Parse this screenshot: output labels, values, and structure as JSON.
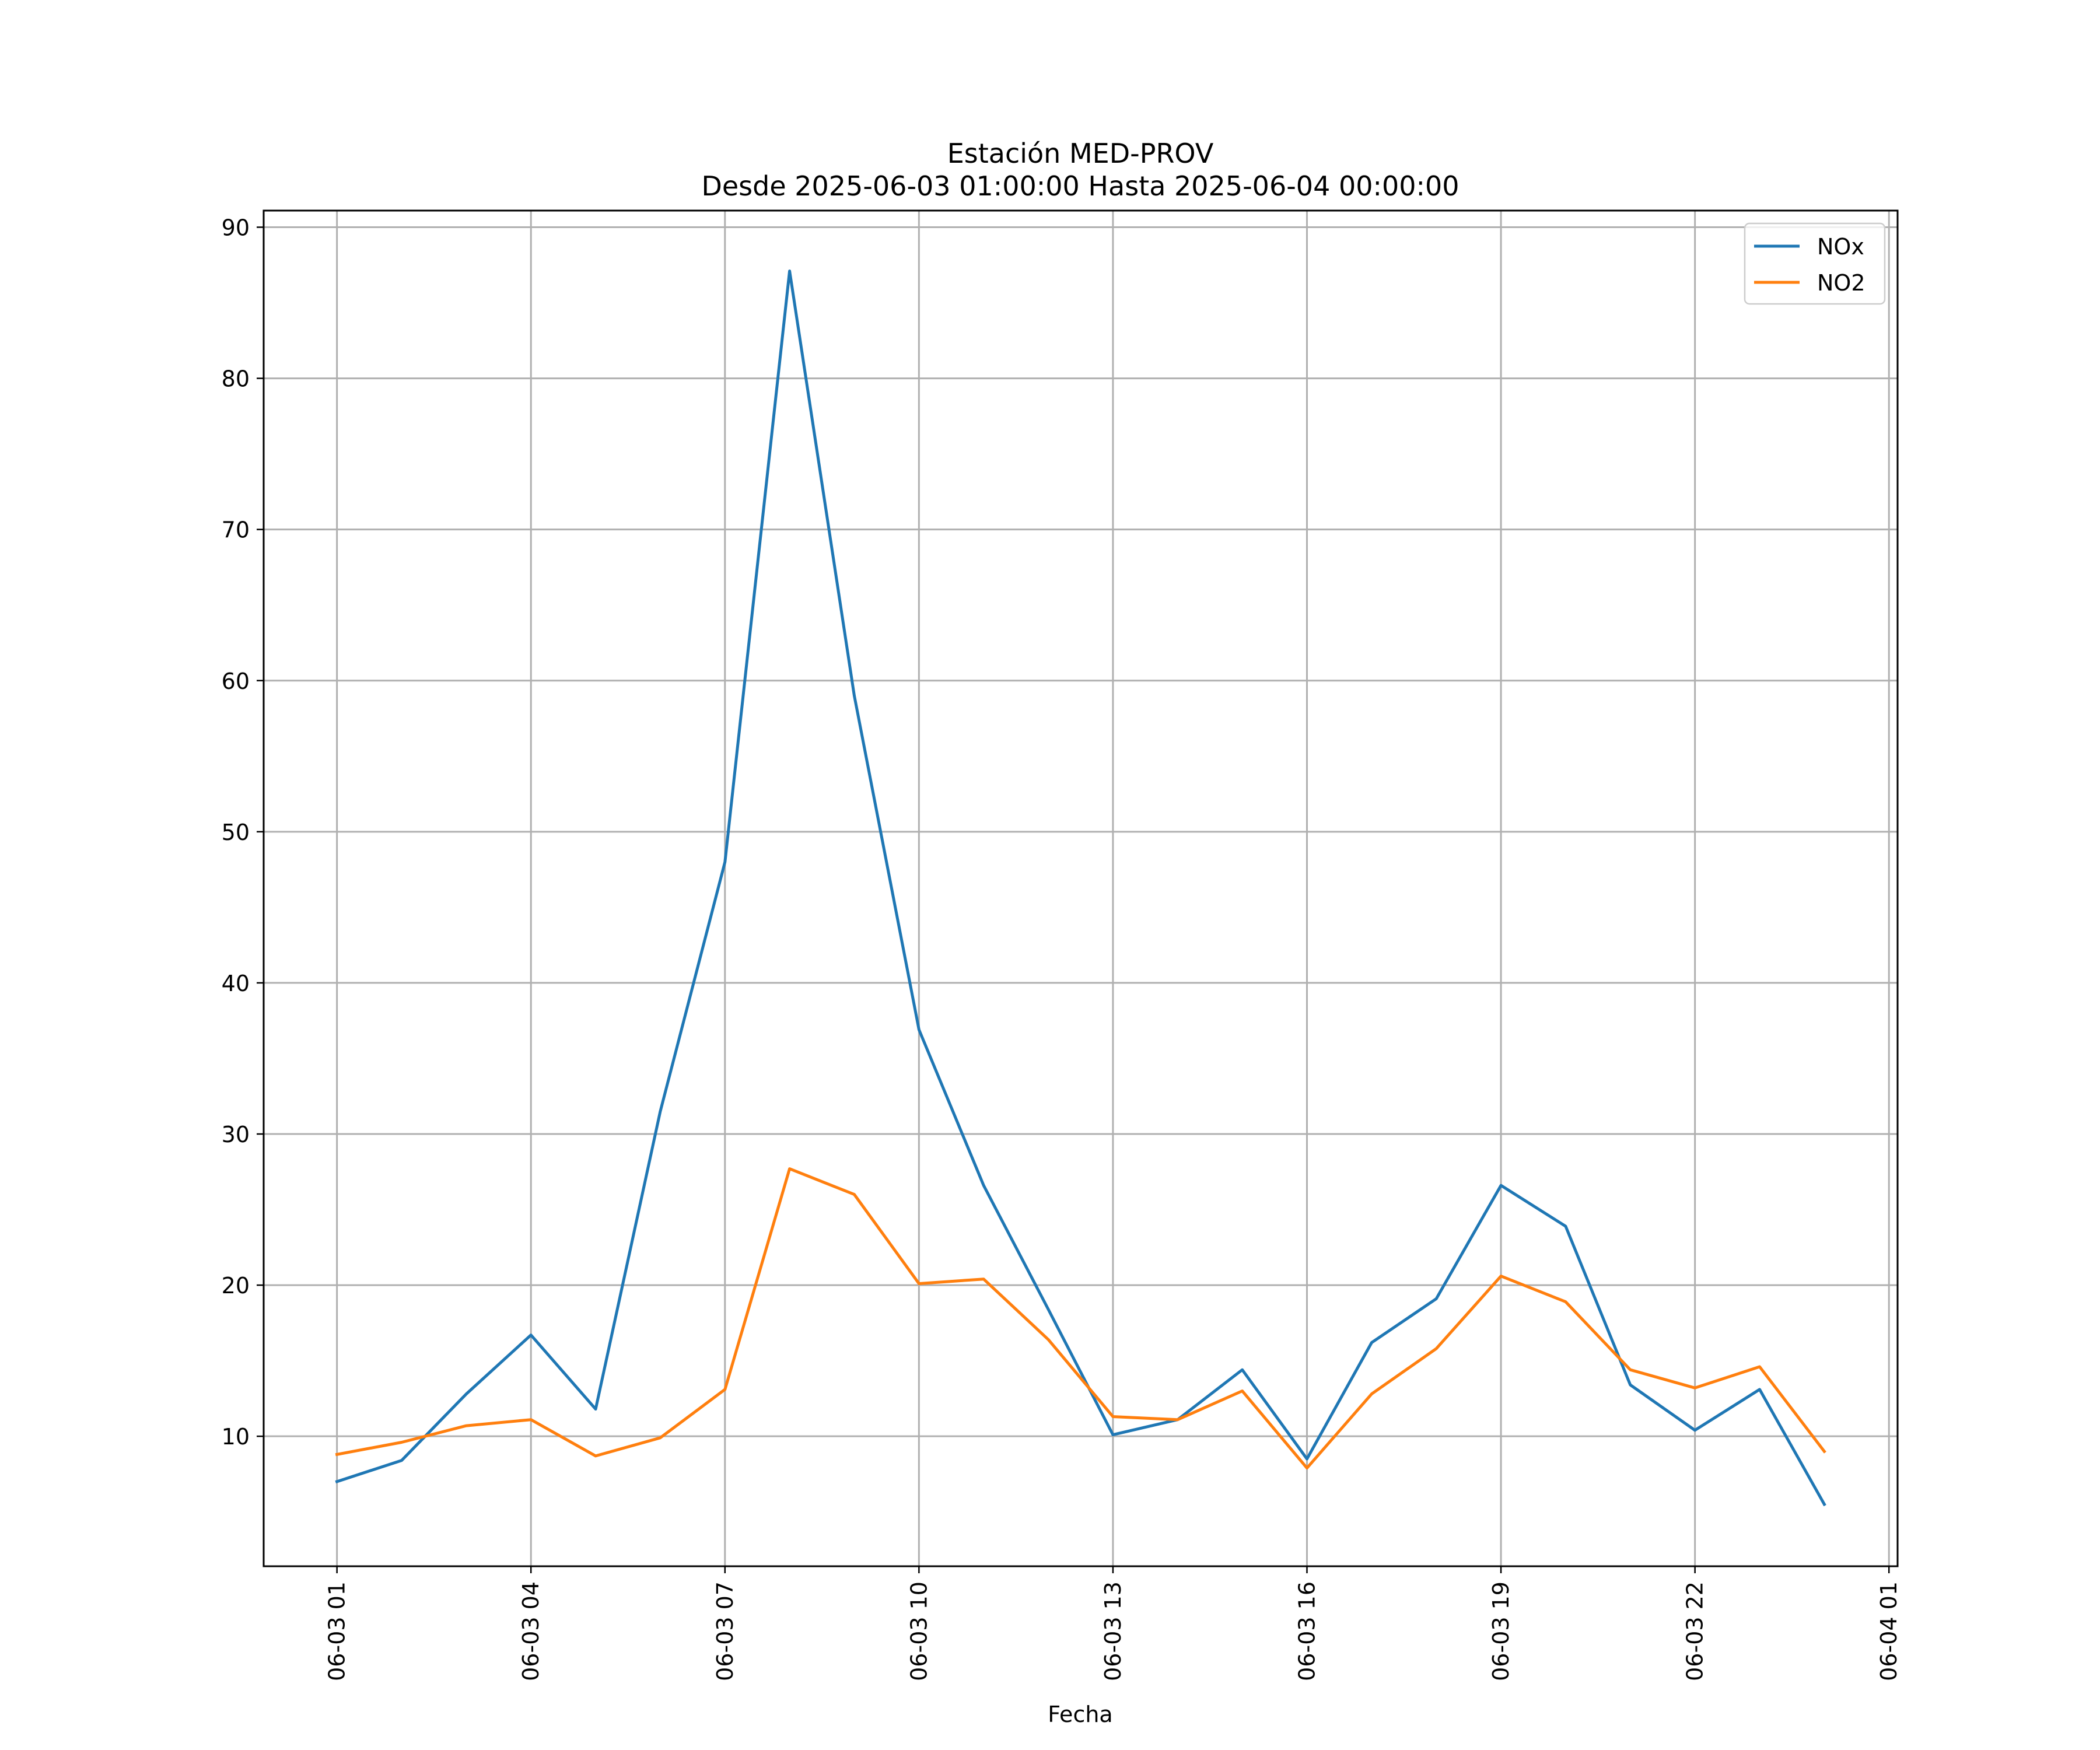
{
  "chart_data": {
    "type": "line",
    "title": "Estación MED-PROV",
    "subtitle": "Desde 2025-06-03 01:00:00 Hasta 2025-06-04 00:00:00",
    "xlabel": "Fecha",
    "ylabel": "",
    "x": [
      "2025-06-03 01:00",
      "2025-06-03 02:00",
      "2025-06-03 03:00",
      "2025-06-03 04:00",
      "2025-06-03 05:00",
      "2025-06-03 06:00",
      "2025-06-03 07:00",
      "2025-06-03 08:00",
      "2025-06-03 09:00",
      "2025-06-03 10:00",
      "2025-06-03 11:00",
      "2025-06-03 12:00",
      "2025-06-03 13:00",
      "2025-06-03 14:00",
      "2025-06-03 15:00",
      "2025-06-03 16:00",
      "2025-06-03 17:00",
      "2025-06-03 18:00",
      "2025-06-03 19:00",
      "2025-06-03 20:00",
      "2025-06-03 21:00",
      "2025-06-03 22:00",
      "2025-06-03 23:00",
      "2025-06-04 00:00"
    ],
    "series": [
      {
        "name": "NOx",
        "color": "#1f77b4",
        "values": [
          7.0,
          8.4,
          12.8,
          16.7,
          11.8,
          31.5,
          48.0,
          87.1,
          59.0,
          36.9,
          26.6,
          18.4,
          10.1,
          11.1,
          14.4,
          8.5,
          16.2,
          19.1,
          26.6,
          23.9,
          13.4,
          10.4,
          13.1,
          5.5
        ]
      },
      {
        "name": "NO2",
        "color": "#ff7f0e",
        "values": [
          8.8,
          9.6,
          10.7,
          11.1,
          8.7,
          9.9,
          13.1,
          27.7,
          26.0,
          20.1,
          20.4,
          16.4,
          11.3,
          11.1,
          13.0,
          7.9,
          12.8,
          15.8,
          20.6,
          18.9,
          14.4,
          13.2,
          14.6,
          9.0
        ]
      }
    ],
    "xticks": [
      "06-03 01",
      "06-03 04",
      "06-03 07",
      "06-03 10",
      "06-03 13",
      "06-03 16",
      "06-03 19",
      "06-03 22",
      "06-04 01"
    ],
    "xlim": [
      "2025-06-02 23:52",
      "2025-06-04 01:08"
    ],
    "yticks": [
      10,
      20,
      30,
      40,
      50,
      60,
      70,
      80,
      90
    ],
    "ylim": [
      1.4,
      91.1
    ],
    "grid": true,
    "legend_position": "upper right"
  }
}
